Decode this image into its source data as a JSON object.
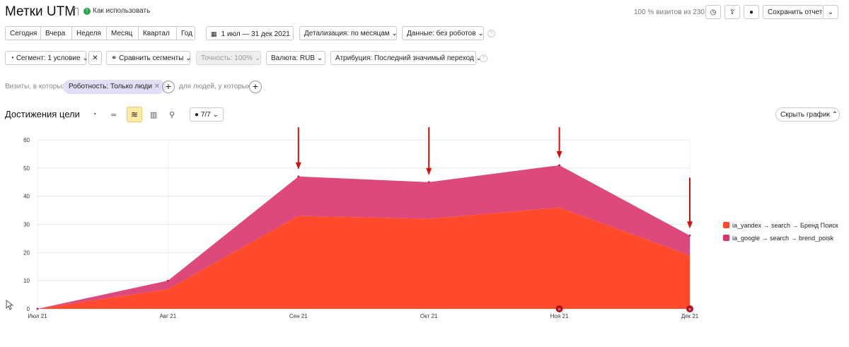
{
  "header": {
    "title": "Метки UTM",
    "howto": "Как использовать",
    "visits_share": "100 % визитов из 230",
    "save_report": "Сохранить отчет"
  },
  "periods": [
    "Сегодня",
    "Вчера",
    "Неделя",
    "Месяц",
    "Квартал",
    "Год"
  ],
  "date_range": "1 июл — 31 дек 2021",
  "detail": "Детализация: по месяцам",
  "data_robots": "Данные: без роботов",
  "segment_bar": {
    "segment": "Сегмент: 1 условие",
    "compare": "Сравнить сегменты",
    "accuracy": "Точность: 100%",
    "currency": "Валюта: RUB",
    "attribution": "Атрибуция: Последний значимый переход"
  },
  "filter": {
    "visits_where": "Визиты, в которых",
    "chip": "Роботность: Только люди",
    "people_where": "для людей, у которых"
  },
  "chart_header": {
    "title": "Достижения цели",
    "goals_count": "7/7",
    "hide_chart": "Скрыть график"
  },
  "colors": {
    "accent": "#ff4b2b",
    "series_pink": "#d8356b",
    "arrow": "#cc1111"
  },
  "chart_data": {
    "type": "area",
    "stacked": true,
    "categories": [
      "Июл 21",
      "Авг 21",
      "Сен 21",
      "Окт 21",
      "Ноя 21",
      "Дек 21"
    ],
    "yticks": [
      0,
      10,
      20,
      30,
      40,
      50,
      60
    ],
    "ylim": [
      0,
      60
    ],
    "grid": true,
    "legend_position": "right",
    "series": [
      {
        "name": "ia_yandex → search → Бренд Поиск",
        "values": [
          0,
          7,
          33,
          32,
          36,
          19
        ],
        "color": "#ff4b2b"
      },
      {
        "name": "ia_google → search → brend_poisk",
        "values": [
          0,
          3,
          14,
          13,
          15,
          7
        ],
        "color": "#d8356b"
      }
    ],
    "annotations": [
      {
        "type": "arrow",
        "category": "Сен 21"
      },
      {
        "type": "arrow",
        "category": "Окт 21"
      },
      {
        "type": "arrow",
        "category": "Ноя 21"
      },
      {
        "type": "arrow",
        "category": "Дек 21"
      }
    ],
    "markers": [
      {
        "category": "Ноя 21",
        "label": "н"
      },
      {
        "category": "Дек 21",
        "label": "н"
      }
    ]
  }
}
